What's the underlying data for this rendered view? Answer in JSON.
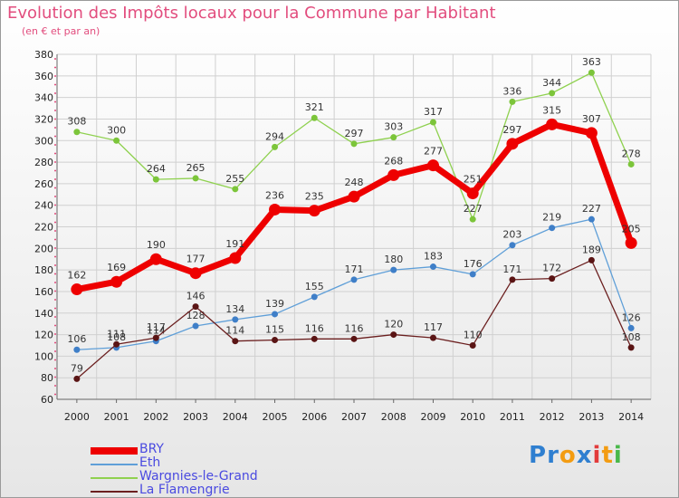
{
  "title": "Evolution des Impôts locaux pour la Commune par Habitant",
  "subtitle": "(en € et par an)",
  "logo": {
    "text": "Proxiti",
    "letters": [
      "P",
      "r",
      "o",
      "x",
      "i",
      "t",
      "i"
    ],
    "colors": [
      "#2f7fd0",
      "#2f7fd0",
      "#f39c12",
      "#2f7fd0",
      "#e23b3b",
      "#f39c12",
      "#49b84a"
    ]
  },
  "chart_data": {
    "type": "line",
    "title": "Evolution des Impôts locaux pour la Commune par Habitant",
    "ylabel": "(en € et par an)",
    "ylim": [
      60,
      380
    ],
    "yticks": [
      60,
      80,
      100,
      120,
      140,
      160,
      180,
      200,
      220,
      240,
      260,
      280,
      300,
      320,
      340,
      360,
      380
    ],
    "grid": true,
    "x": [
      "2000",
      "2001",
      "2002",
      "2003",
      "2004",
      "2005",
      "2006",
      "2007",
      "2008",
      "2009",
      "2010",
      "2011",
      "2012",
      "2013",
      "2014"
    ],
    "series": [
      {
        "name": "Wargnies-le-Grand",
        "color": "#8fd14f",
        "point_color": "#7cc53a",
        "values": [
          308,
          300,
          264,
          265,
          255,
          294,
          321,
          297,
          303,
          317,
          227,
          336,
          344,
          363,
          278
        ],
        "labels": [
          "308",
          "300",
          "264",
          "265",
          "255",
          "294",
          "321",
          "297",
          "303",
          "317",
          "227",
          "336",
          "344",
          "363",
          "278"
        ]
      },
      {
        "name": "Eth",
        "color": "#5f9fd8",
        "point_color": "#3f7fc8",
        "values": [
          106,
          108,
          114,
          128,
          134,
          139,
          155,
          171,
          180,
          183,
          176,
          203,
          219,
          227,
          126
        ],
        "labels": [
          "106",
          "108",
          "114",
          "128",
          "134",
          "139",
          "155",
          "171",
          "180",
          "183",
          "176",
          "203",
          "219",
          "227",
          "126"
        ]
      },
      {
        "name": "La Flamengrie",
        "color": "#6b1f1f",
        "point_color": "#5a1414",
        "values": [
          79,
          111,
          117,
          146,
          114,
          115,
          116,
          116,
          120,
          117,
          110,
          171,
          172,
          189,
          108
        ],
        "labels": [
          "79",
          "111",
          "117",
          "146",
          "114",
          "115",
          "116",
          "116",
          "120",
          "117",
          "110",
          "171",
          "172",
          "189",
          "108"
        ]
      },
      {
        "name": "BRY",
        "color": "#ee0000",
        "point_color": "#ee0000",
        "values": [
          162,
          169,
          190,
          177,
          191,
          236,
          235,
          248,
          268,
          277,
          251,
          297,
          315,
          307,
          205
        ],
        "labels": [
          "162",
          "169",
          "190",
          "177",
          "191",
          "236",
          "235",
          "248",
          "268",
          "277",
          "251",
          "297",
          "315",
          "307",
          "205"
        ]
      }
    ]
  },
  "legend": [
    {
      "name": "BRY",
      "color": "#ee0000",
      "thickness": 8
    },
    {
      "name": "Eth",
      "color": "#5f9fd8",
      "thickness": 2
    },
    {
      "name": "Wargnies-le-Grand",
      "color": "#8fd14f",
      "thickness": 2
    },
    {
      "name": "La Flamengrie",
      "color": "#6b1f1f",
      "thickness": 2
    }
  ]
}
